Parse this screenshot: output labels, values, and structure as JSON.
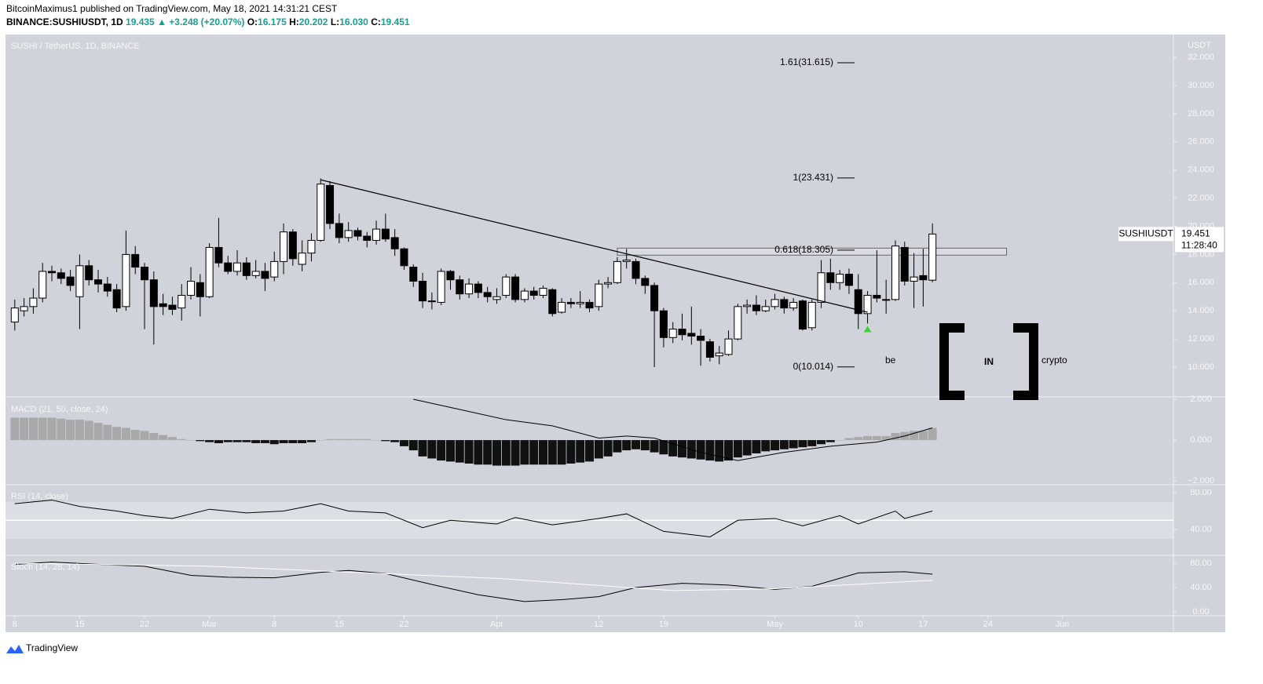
{
  "header": {
    "author_line": "BitcoinMaximus1 published on TradingView.com, May 18, 2021 14:31:21 CEST",
    "symbol": "BINANCE:SUSHIUSDT, 1D",
    "price": "19.435",
    "change": "▲ +3.248 (+20.07%)",
    "ohlc": [
      {
        "k": "O:",
        "v": "16.175"
      },
      {
        "k": "H:",
        "v": "20.202"
      },
      {
        "k": "L:",
        "v": "16.030"
      },
      {
        "k": "C:",
        "v": "19.451"
      }
    ]
  },
  "watermark": [
    "be",
    "IN",
    "crypto"
  ],
  "footer": "TradingView",
  "chart_data": {
    "type": "candlestick",
    "title": "SUSHI / TetherUS, 1D, BINANCE",
    "y_axis_label": "USDT",
    "x": [
      "02-08",
      "02-09",
      "02-10",
      "02-11",
      "02-12",
      "02-13",
      "02-14",
      "02-15",
      "02-16",
      "02-17",
      "02-18",
      "02-19",
      "02-20",
      "02-21",
      "02-22",
      "02-23",
      "02-24",
      "02-25",
      "02-26",
      "02-27",
      "02-28",
      "03-01",
      "03-02",
      "03-03",
      "03-04",
      "03-05",
      "03-06",
      "03-07",
      "03-08",
      "03-09",
      "03-10",
      "03-11",
      "03-12",
      "03-13",
      "03-14",
      "03-15",
      "03-16",
      "03-17",
      "03-18",
      "03-19",
      "03-20",
      "03-21",
      "03-22",
      "03-23",
      "03-24",
      "03-25",
      "03-26",
      "03-27",
      "03-28",
      "03-29",
      "03-30",
      "03-31",
      "04-01",
      "04-02",
      "04-03",
      "04-04",
      "04-05",
      "04-06",
      "04-07",
      "04-08",
      "04-09",
      "04-10",
      "04-11",
      "04-12",
      "04-13",
      "04-14",
      "04-15",
      "04-16",
      "04-17",
      "04-18",
      "04-19",
      "04-20",
      "04-21",
      "04-22",
      "04-23",
      "04-24",
      "04-25",
      "04-26",
      "04-27",
      "04-28",
      "04-29",
      "04-30",
      "05-01",
      "05-02",
      "05-03",
      "05-04",
      "05-05",
      "05-06",
      "05-07",
      "05-08",
      "05-09",
      "05-10",
      "05-11",
      "05-12",
      "05-13",
      "05-14",
      "05-15",
      "05-16",
      "05-17",
      "05-18"
    ],
    "open": [
      13.2,
      14.0,
      14.3,
      14.9,
      16.8,
      16.7,
      16.4,
      15.0,
      17.2,
      16.2,
      15.9,
      15.5,
      14.3,
      18.0,
      17.1,
      16.2,
      14.5,
      14.4,
      14.2,
      15.1,
      16.0,
      15.0,
      18.5,
      17.4,
      16.8,
      17.4,
      16.5,
      16.8,
      16.4,
      17.5,
      19.6,
      17.3,
      18.1,
      19.0,
      22.9,
      20.2,
      19.2,
      19.7,
      19.3,
      19.0,
      19.8,
      19.2,
      18.4,
      17.1,
      16.1,
      14.7,
      14.6,
      16.8,
      16.2,
      15.2,
      15.9,
      15.3,
      14.8,
      15.1,
      16.4,
      14.8,
      15.4,
      15.1,
      15.5,
      13.9,
      14.6,
      14.5,
      14.6,
      14.3,
      15.9,
      16.0,
      17.5,
      17.5,
      16.3,
      15.8,
      14.0,
      12.1,
      12.7,
      12.4,
      12.2,
      11.8,
      10.8,
      10.9,
      12.0,
      14.3,
      14.4,
      14.0,
      14.3,
      14.8,
      14.2,
      14.7,
      12.8,
      14.6,
      16.7,
      16.0,
      16.6,
      15.5,
      13.8,
      15.1,
      14.8,
      14.8,
      18.5,
      16.1,
      16.5,
      16.175
    ],
    "high": [
      14.8,
      14.9,
      15.6,
      17.4,
      17.2,
      17.0,
      16.9,
      18.0,
      17.6,
      16.9,
      16.4,
      15.9,
      19.7,
      18.6,
      17.4,
      16.8,
      15.2,
      15.0,
      15.9,
      17.1,
      16.6,
      18.8,
      20.6,
      17.9,
      18.3,
      17.8,
      17.6,
      17.4,
      18.2,
      20.2,
      19.8,
      19.0,
      19.5,
      23.4,
      23.2,
      20.9,
      20.3,
      19.9,
      19.6,
      20.4,
      20.9,
      19.8,
      18.5,
      17.3,
      16.7,
      15.3,
      17.0,
      16.9,
      16.5,
      16.3,
      16.1,
      15.7,
      15.6,
      16.6,
      16.6,
      15.6,
      15.7,
      15.8,
      15.6,
      14.9,
      14.9,
      15.4,
      14.8,
      16.2,
      16.4,
      17.8,
      18.4,
      17.7,
      16.5,
      16.0,
      14.2,
      13.2,
      13.8,
      14.3,
      12.7,
      12.0,
      11.5,
      12.6,
      14.5,
      14.8,
      15.1,
      14.8,
      15.2,
      15.0,
      14.9,
      14.8,
      14.8,
      17.6,
      17.7,
      16.9,
      17.0,
      16.6,
      15.4,
      18.3,
      16.2,
      19.0,
      18.9,
      18.1,
      18.4,
      20.202
    ],
    "low": [
      12.6,
      13.6,
      13.8,
      14.6,
      16.1,
      15.9,
      15.4,
      12.7,
      15.8,
      15.3,
      15.0,
      13.9,
      14.0,
      16.6,
      12.7,
      11.6,
      13.7,
      13.7,
      13.3,
      14.8,
      13.6,
      14.9,
      17.1,
      16.6,
      16.5,
      16.2,
      16.3,
      15.4,
      16.1,
      16.6,
      17.2,
      16.8,
      17.5,
      18.9,
      19.8,
      18.8,
      18.9,
      19.0,
      18.5,
      18.7,
      18.9,
      17.9,
      16.9,
      15.7,
      14.2,
      14.1,
      14.4,
      15.5,
      14.8,
      14.9,
      14.9,
      14.6,
      14.5,
      14.9,
      14.6,
      14.6,
      14.8,
      14.9,
      13.6,
      13.8,
      14.2,
      14.2,
      13.9,
      14.0,
      15.6,
      15.9,
      17.0,
      15.9,
      15.2,
      10.0,
      11.4,
      11.7,
      11.9,
      11.6,
      10.1,
      10.4,
      10.2,
      10.8,
      11.9,
      13.8,
      13.7,
      13.9,
      14.1,
      13.8,
      14.0,
      12.6,
      12.6,
      14.2,
      15.5,
      15.5,
      15.2,
      12.7,
      13.1,
      14.6,
      13.8,
      14.7,
      15.8,
      14.2,
      14.3,
      16.03
    ],
    "close": [
      14.2,
      14.3,
      14.9,
      16.8,
      16.7,
      16.3,
      15.8,
      17.2,
      16.2,
      15.9,
      15.4,
      14.2,
      18.0,
      17.1,
      16.2,
      14.3,
      14.3,
      14.1,
      15.1,
      16.1,
      15.0,
      18.5,
      17.4,
      16.8,
      17.4,
      16.5,
      16.8,
      16.3,
      17.5,
      19.6,
      17.7,
      18.1,
      19.0,
      23.0,
      20.2,
      19.2,
      19.7,
      19.3,
      19.0,
      19.8,
      19.1,
      18.4,
      17.2,
      16.1,
      14.7,
      14.7,
      16.8,
      16.2,
      15.2,
      15.9,
      15.3,
      15.0,
      15.0,
      16.4,
      14.8,
      15.4,
      15.1,
      15.6,
      13.8,
      14.6,
      14.5,
      14.6,
      14.2,
      15.9,
      16.0,
      17.5,
      17.6,
      16.3,
      15.8,
      14.0,
      12.1,
      12.7,
      12.3,
      12.2,
      11.9,
      10.7,
      11.0,
      12.0,
      14.3,
      14.4,
      14.0,
      14.3,
      14.8,
      14.2,
      14.6,
      12.7,
      14.6,
      16.7,
      16.0,
      16.6,
      15.8,
      13.8,
      15.1,
      14.9,
      14.8,
      18.6,
      16.1,
      16.4,
      16.2,
      19.451
    ],
    "up_color": "#ffffff",
    "down_color": "#000000",
    "xlim": [
      "02-07",
      "06-13"
    ],
    "xticks": [
      {
        "value": "02-08",
        "label": "8"
      },
      {
        "value": "02-15",
        "label": "15"
      },
      {
        "value": "02-22",
        "label": "22"
      },
      {
        "value": "03-01",
        "label": "Mar"
      },
      {
        "value": "03-08",
        "label": "8"
      },
      {
        "value": "03-15",
        "label": "15"
      },
      {
        "value": "03-22",
        "label": "22"
      },
      {
        "value": "04-01",
        "label": "Apr"
      },
      {
        "value": "04-12",
        "label": "12"
      },
      {
        "value": "04-19",
        "label": "19"
      },
      {
        "value": "05-01",
        "label": "May"
      },
      {
        "value": "05-10",
        "label": "10"
      },
      {
        "value": "05-17",
        "label": "17"
      },
      {
        "value": "05-24",
        "label": "24"
      },
      {
        "value": "06-01",
        "label": "Jun"
      }
    ],
    "ylim": [
      7.94,
      33.62
    ],
    "yticks": [
      {
        "value": 10,
        "label": "10.000"
      },
      {
        "value": 12,
        "label": "12.000"
      },
      {
        "value": 14,
        "label": "14.000"
      },
      {
        "value": 16,
        "label": "16.000"
      },
      {
        "value": 18,
        "label": "18.000"
      },
      {
        "value": 20,
        "label": "20.000"
      },
      {
        "value": 22,
        "label": "22.000"
      },
      {
        "value": 24,
        "label": "24.000"
      },
      {
        "value": 26,
        "label": "26.000"
      },
      {
        "value": 28,
        "label": "28.000"
      },
      {
        "value": 30,
        "label": "30.000"
      },
      {
        "value": 32,
        "label": "32.000"
      }
    ],
    "trendline": {
      "x": [
        "03-13",
        "05-11"
      ],
      "y": [
        23.3,
        13.9
      ]
    },
    "zone": {
      "x": [
        "04-14",
        "05-26"
      ],
      "y": [
        17.95,
        18.45
      ]
    },
    "fib_levels": [
      {
        "label": "1.61(31.615)",
        "value": 31.615
      },
      {
        "label": "1(23.431)",
        "value": 23.431
      },
      {
        "label": "0.618(18.305)",
        "value": 18.305
      },
      {
        "label": "0(10.014)",
        "value": 10.014
      }
    ],
    "marker": {
      "x": "05-11",
      "y": 12.7,
      "color": "#3bd13b"
    },
    "last_price": {
      "symbol": "SUSHIUSDT",
      "value": 19.451,
      "countdown": "11:28:40"
    },
    "panels": [
      {
        "type": "bar",
        "title": "MACD (21, 50, close, 24)",
        "positive_color": "#a9a9a9",
        "negative_color": "#111111",
        "values": [
          1.1,
          1.1,
          1.1,
          1.1,
          1.1,
          1.05,
          1.0,
          1.0,
          0.95,
          0.85,
          0.75,
          0.65,
          0.6,
          0.5,
          0.45,
          0.35,
          0.25,
          0.15,
          0.05,
          0.0,
          -0.05,
          -0.1,
          -0.15,
          -0.1,
          -0.1,
          -0.1,
          -0.15,
          -0.15,
          -0.2,
          -0.15,
          -0.15,
          -0.15,
          -0.1,
          0.0,
          0.05,
          0.05,
          0.05,
          0.05,
          0.05,
          0.0,
          -0.05,
          -0.1,
          -0.3,
          -0.5,
          -0.8,
          -0.9,
          -1.0,
          -1.05,
          -1.1,
          -1.15,
          -1.2,
          -1.2,
          -1.25,
          -1.25,
          -1.25,
          -1.2,
          -1.2,
          -1.2,
          -1.2,
          -1.2,
          -1.15,
          -1.1,
          -1.05,
          -0.9,
          -0.8,
          -0.6,
          -0.5,
          -0.45,
          -0.5,
          -0.6,
          -0.7,
          -0.8,
          -0.85,
          -0.9,
          -0.95,
          -1.0,
          -1.05,
          -1.0,
          -0.85,
          -0.75,
          -0.65,
          -0.55,
          -0.5,
          -0.45,
          -0.4,
          -0.35,
          -0.3,
          -0.2,
          -0.1,
          0.0,
          0.1,
          0.15,
          0.2,
          0.2,
          0.2,
          0.35,
          0.4,
          0.45,
          0.45,
          0.6
        ],
        "line": {
          "color": "#000000",
          "x": [
            "03-23",
            "03-28",
            "04-02",
            "04-07",
            "04-12",
            "04-15",
            "04-18",
            "04-23",
            "04-27",
            "05-02",
            "05-07",
            "05-12",
            "05-15",
            "05-18"
          ],
          "values": [
            2.0,
            1.5,
            1.0,
            0.7,
            0.1,
            0.2,
            0.1,
            -0.6,
            -1.0,
            -0.6,
            -0.3,
            -0.1,
            0.2,
            0.6
          ]
        },
        "ylim": [
          -2.15,
          2.04
        ],
        "yticks": [
          {
            "value": -2,
            "label": "−2.000"
          },
          {
            "value": 0,
            "label": "0.000"
          },
          {
            "value": 2,
            "label": "2.000"
          }
        ]
      },
      {
        "type": "line",
        "title": "RSI (14, close)",
        "band": [
          30,
          70
        ],
        "midline": 50,
        "series": [
          {
            "color": "#000000",
            "x": [
              "02-08",
              "02-12",
              "02-15",
              "02-19",
              "02-22",
              "02-25",
              "03-01",
              "03-05",
              "03-09",
              "03-13",
              "03-16",
              "03-20",
              "03-24",
              "03-27",
              "04-01",
              "04-03",
              "04-07",
              "04-12",
              "04-15",
              "04-19",
              "04-24",
              "04-27",
              "05-01",
              "05-04",
              "05-08",
              "05-10",
              "05-14",
              "05-15",
              "05-18"
            ],
            "values": [
              68,
              72,
              65,
              60,
              55,
              52,
              62,
              58,
              60,
              68,
              60,
              58,
              42,
              50,
              46,
              53,
              45,
              52,
              57,
              38,
              32,
              50,
              52,
              44,
              55,
              46,
              60,
              52,
              60
            ]
          }
        ],
        "ylim": [
          12.8,
          87.7
        ],
        "yticks": [
          {
            "value": 40,
            "label": "40.00"
          },
          {
            "value": 80,
            "label": "80.00"
          }
        ]
      },
      {
        "type": "line",
        "title": "Stoch (14, 28, 14)",
        "series": [
          {
            "color": "#000000",
            "x": [
              "02-08",
              "02-12",
              "02-17",
              "02-22",
              "02-27",
              "03-03",
              "03-08",
              "03-13",
              "03-16",
              "03-20",
              "03-25",
              "03-30",
              "04-04",
              "04-08",
              "04-12",
              "04-16",
              "04-21",
              "04-26",
              "05-01",
              "05-05",
              "05-10",
              "05-15",
              "05-18"
            ],
            "values": [
              78,
              82,
              78,
              75,
              60,
              57,
              56,
              65,
              68,
              63,
              45,
              28,
              17,
              20,
              25,
              40,
              47,
              44,
              37,
              42,
              64,
              66,
              62
            ]
          },
          {
            "color": "#ffffff",
            "x": [
              "02-08",
              "03-01",
              "04-01",
              "04-20",
              "05-01",
              "05-18"
            ],
            "values": [
              80,
              75,
              55,
              35,
              38,
              52
            ]
          }
        ],
        "ylim": [
          -6.45,
          91.6
        ],
        "yticks": [
          {
            "value": 0,
            "label": "0.00"
          },
          {
            "value": 40,
            "label": "40.00"
          },
          {
            "value": 80,
            "label": "80.00"
          }
        ]
      }
    ]
  }
}
